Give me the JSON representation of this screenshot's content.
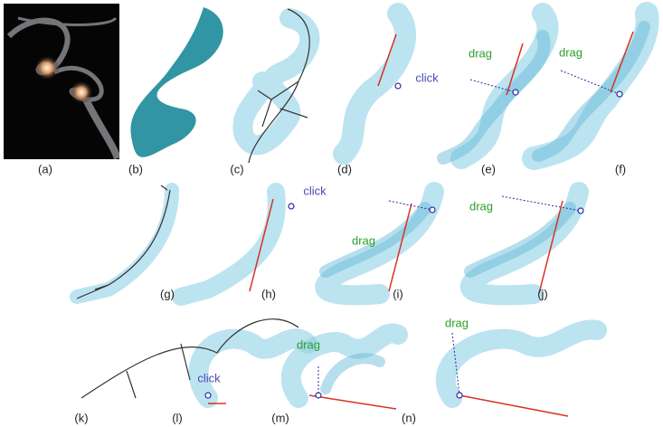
{
  "panels": [
    {
      "label": "(a)"
    },
    {
      "label": "(b)"
    },
    {
      "label": "(c)"
    },
    {
      "label": "(d)",
      "annotation": "click"
    },
    {
      "label": "(e)",
      "annotation": "drag"
    },
    {
      "label": "(f)",
      "annotation": "drag"
    },
    {
      "label": "(g)"
    },
    {
      "label": "(h)",
      "annotation": "click"
    },
    {
      "label": "(i)",
      "annotation": "drag"
    },
    {
      "label": "(j)",
      "annotation": "drag"
    },
    {
      "label": "(k)"
    },
    {
      "label": "(l)",
      "annotation": "click"
    },
    {
      "label": "(m)",
      "annotation": "drag"
    },
    {
      "label": "(n)",
      "annotation": "drag"
    }
  ]
}
